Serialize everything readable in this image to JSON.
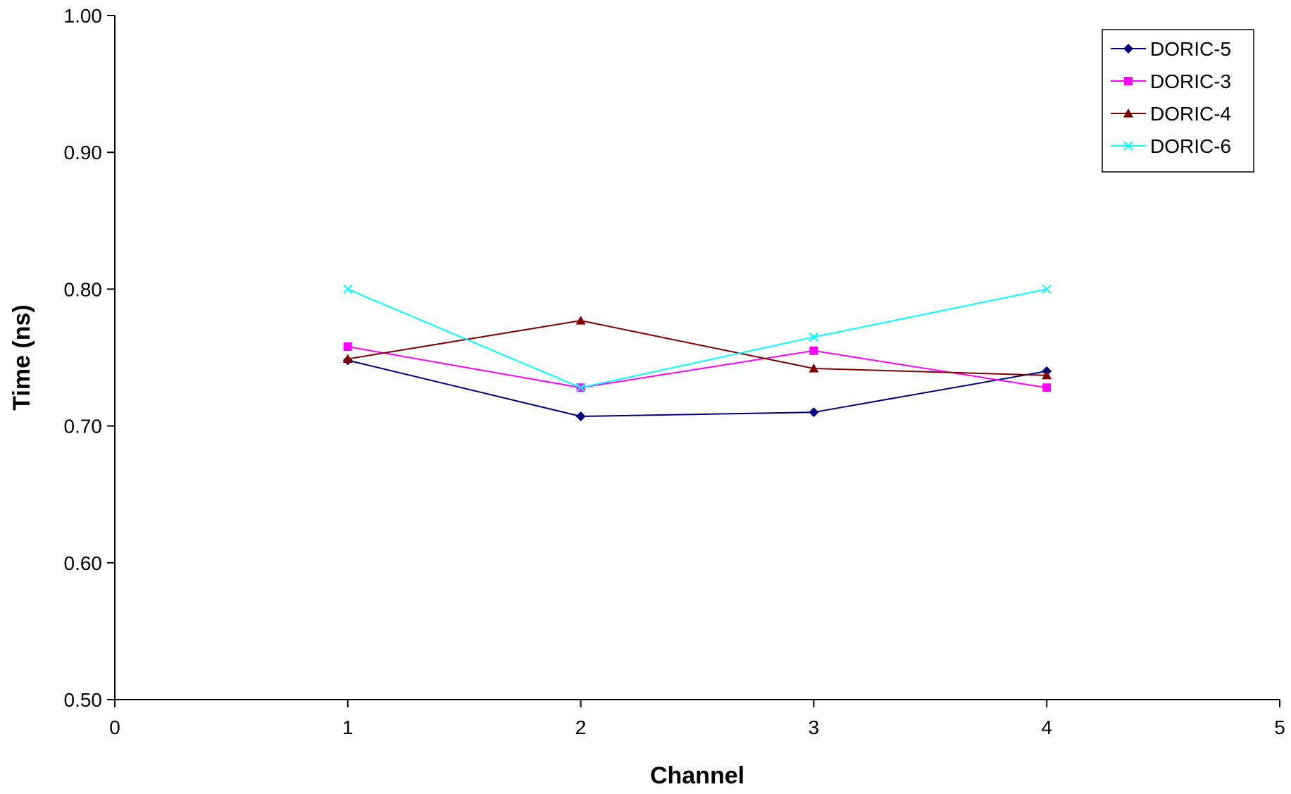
{
  "chart_data": {
    "type": "line",
    "title": "",
    "xlabel": "Channel",
    "ylabel": "Time (ns)",
    "xlim": [
      0,
      5
    ],
    "ylim": [
      0.5,
      1.0
    ],
    "x_ticks": [
      "0",
      "1",
      "2",
      "3",
      "4",
      "5"
    ],
    "y_ticks": [
      "0.50",
      "0.60",
      "0.70",
      "0.80",
      "0.90",
      "1.00"
    ],
    "grid": false,
    "legend_position": "top-right",
    "series": [
      {
        "name": "DORIC-5",
        "color": "#000080",
        "marker": "diamond",
        "x": [
          1,
          2,
          3,
          4
        ],
        "y": [
          0.748,
          0.707,
          0.71,
          0.74
        ]
      },
      {
        "name": "DORIC-3",
        "color": "#ff00ff",
        "marker": "square",
        "x": [
          1,
          2,
          3,
          4
        ],
        "y": [
          0.758,
          0.728,
          0.755,
          0.728
        ]
      },
      {
        "name": "DORIC-4",
        "color": "#800000",
        "marker": "triangle",
        "x": [
          1,
          2,
          3,
          4
        ],
        "y": [
          0.749,
          0.777,
          0.742,
          0.737
        ]
      },
      {
        "name": "DORIC-6",
        "color": "#00ffff",
        "marker": "x",
        "x": [
          1,
          2,
          3,
          4
        ],
        "y": [
          0.8,
          0.728,
          0.765,
          0.8
        ]
      }
    ]
  }
}
